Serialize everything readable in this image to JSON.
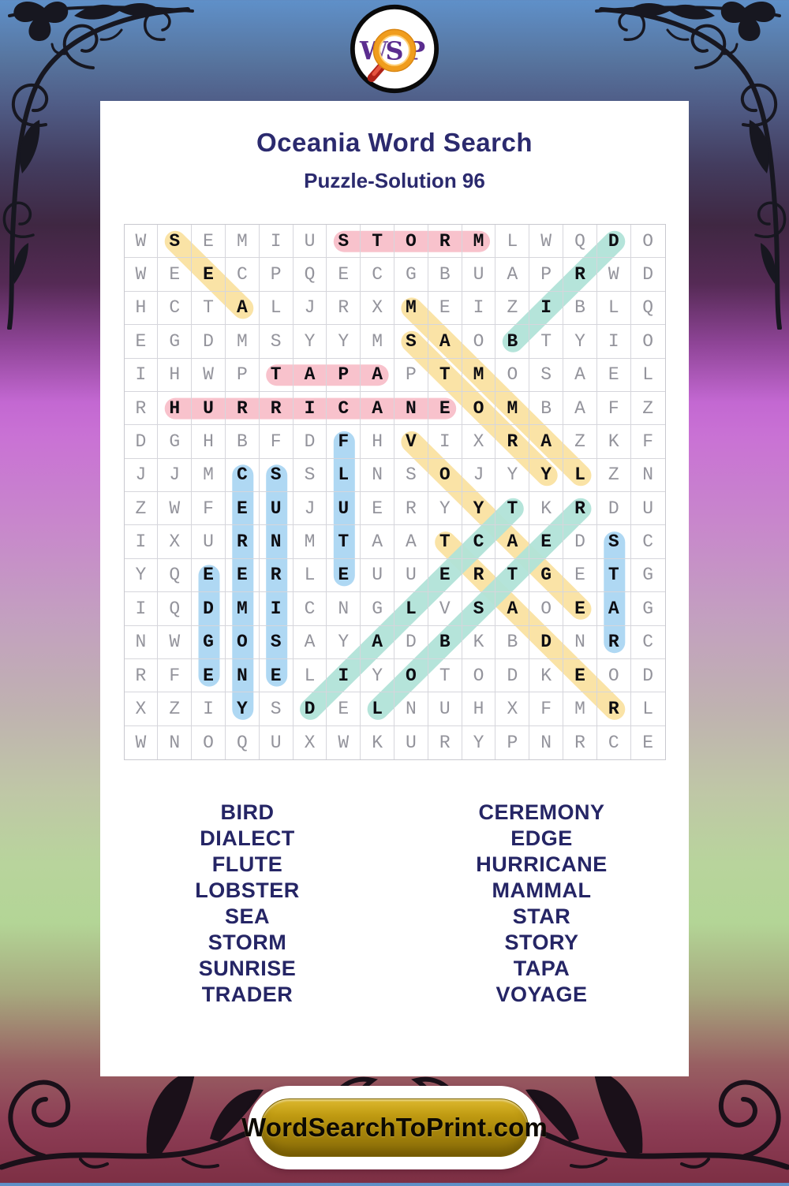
{
  "logo": {
    "letters": [
      "W",
      "S",
      "P"
    ],
    "letter_color": "#5b2d8f",
    "ring_color": "#f09d1d",
    "handle_color": "#c9271e"
  },
  "header": {
    "title": "Oceania Word Search",
    "subtitle": "Puzzle-Solution 96"
  },
  "puzzle": {
    "rows": 16,
    "cols": 16,
    "grid": [
      "WSEMIUSTORMLWQDO",
      "WEECPQECGBUAPRWD",
      "HCTALJRXMEIZIBLQ",
      "EGDMSYYMSAOBTYIO",
      "IHWPTAPAPTMOSAEL",
      "RHURRICANEOMBAFZ",
      "DGHBFDFHVIXRAZKF",
      "JJMCSSLNSOJYYLZN",
      "ZWFEUJUERYYTKRDU",
      "IXURNMTAATCAEDSC",
      "YQEERLEUUERTGETG",
      "IQDMICNGLVSAOEAG",
      "NWGOSAYADBKBDNRC",
      "RFENELIYOTODKEOD",
      "XZIYSDELNUHXFMRL",
      "WNOQUXWKURYPNRCE"
    ],
    "solutions": [
      {
        "word": "SEA",
        "row": 1,
        "col": 2,
        "dir": "SE",
        "color": "yellow"
      },
      {
        "word": "STORM",
        "row": 1,
        "col": 7,
        "dir": "E",
        "color": "pink"
      },
      {
        "word": "BIRD",
        "row": 4,
        "col": 12,
        "dir": "NE",
        "color": "teal"
      },
      {
        "word": "MAMMAL",
        "row": 3,
        "col": 9,
        "dir": "SE",
        "color": "yellow"
      },
      {
        "word": "STORY",
        "row": 4,
        "col": 9,
        "dir": "SE",
        "color": "yellow"
      },
      {
        "word": "TAPA",
        "row": 5,
        "col": 5,
        "dir": "E",
        "color": "pink"
      },
      {
        "word": "HURRICANE",
        "row": 6,
        "col": 2,
        "dir": "E",
        "color": "pink"
      },
      {
        "word": "FLUTE",
        "row": 7,
        "col": 7,
        "dir": "S",
        "color": "blue"
      },
      {
        "word": "VOYAGE",
        "row": 7,
        "col": 9,
        "dir": "SE",
        "color": "yellow"
      },
      {
        "word": "CEREMONY",
        "row": 8,
        "col": 4,
        "dir": "S",
        "color": "blue"
      },
      {
        "word": "SUNRISE",
        "row": 8,
        "col": 5,
        "dir": "S",
        "color": "blue"
      },
      {
        "word": "STAR",
        "row": 10,
        "col": 15,
        "dir": "S",
        "color": "blue"
      },
      {
        "word": "TRADER",
        "row": 10,
        "col": 10,
        "dir": "SE",
        "color": "yellow"
      },
      {
        "word": "EDGE",
        "row": 11,
        "col": 3,
        "dir": "S",
        "color": "blue"
      },
      {
        "word": "DIALECT",
        "row": 15,
        "col": 6,
        "dir": "NE",
        "color": "teal"
      },
      {
        "word": "LOBSTER",
        "row": 15,
        "col": 8,
        "dir": "NE",
        "color": "teal"
      }
    ],
    "highlight_colors": {
      "pink": "#f8bfca",
      "yellow": "#fae2a2",
      "teal": "#b2e3d8",
      "blue": "#abd6f3"
    }
  },
  "word_list": {
    "left": [
      "BIRD",
      "DIALECT",
      "FLUTE",
      "LOBSTER",
      "SEA",
      "STORM",
      "SUNRISE",
      "TRADER"
    ],
    "right": [
      "CEREMONY",
      "EDGE",
      "HURRICANE",
      "MAMMAL",
      "STAR",
      "STORY",
      "TAPA",
      "VOYAGE"
    ]
  },
  "footer": {
    "site_label": "WordSearchToPrint.com"
  }
}
